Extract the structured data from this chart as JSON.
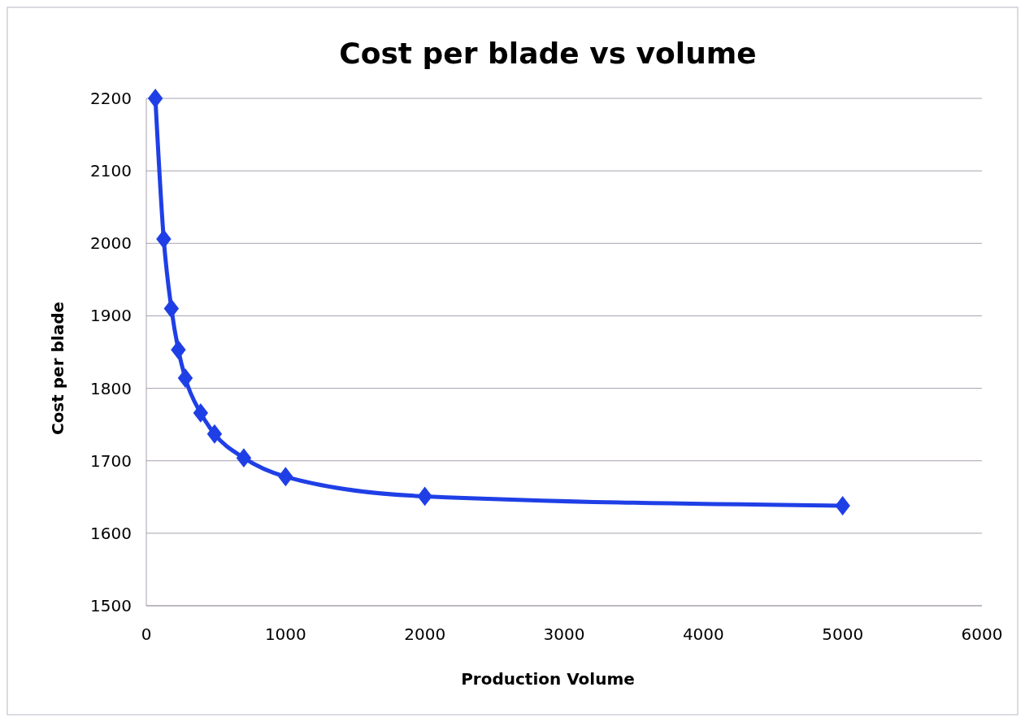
{
  "chart_data": {
    "type": "line",
    "title": "Cost per blade vs volume",
    "xlabel": "Production Volume",
    "ylabel": "Cost per blade",
    "x": [
      65,
      125,
      180,
      230,
      280,
      390,
      490,
      700,
      1000,
      2000,
      5000
    ],
    "series": [
      {
        "color": "#1f3fe6",
        "values": [
          2200,
          2006,
          1910,
          1853,
          1814,
          1766,
          1737,
          1704,
          1678,
          1651,
          1638
        ]
      }
    ],
    "xlim": [
      0,
      6000
    ],
    "xticks": [
      0,
      1000,
      2000,
      3000,
      4000,
      5000,
      6000
    ],
    "ylim": [
      1500,
      2200
    ],
    "yticks": [
      1500,
      1600,
      1700,
      1800,
      1900,
      2000,
      2100,
      2200
    ],
    "grid": "y",
    "marker": "diamond",
    "line_style": "solid"
  }
}
